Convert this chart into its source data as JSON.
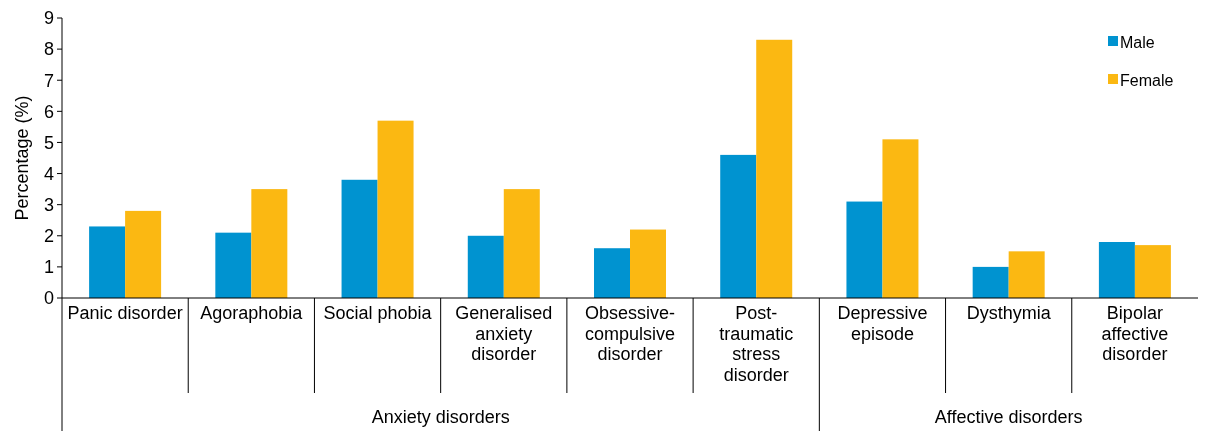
{
  "chart_data": {
    "type": "bar",
    "ylabel": "Percentage (%)",
    "categories": [
      "Panic disorder",
      "Agoraphobia",
      "Social phobia",
      "Generalised anxiety disorder",
      "Obsessive-compulsive disorder",
      "Post-traumatic stress disorder",
      "Depressive episode",
      "Dysthymia",
      "Bipolar affective disorder"
    ],
    "series": [
      {
        "name": "Male",
        "color": "#0093d0",
        "values": [
          2.3,
          2.1,
          3.8,
          2.0,
          1.6,
          4.6,
          3.1,
          1.0,
          1.8
        ]
      },
      {
        "name": "Female",
        "color": "#fbb812",
        "values": [
          2.8,
          3.5,
          5.7,
          3.5,
          2.2,
          8.3,
          5.1,
          1.5,
          1.7
        ]
      }
    ],
    "ylim": [
      0,
      9
    ],
    "yticks": [
      0,
      1,
      2,
      3,
      4,
      5,
      6,
      7,
      8,
      9
    ],
    "grid": false,
    "legend": "top right",
    "annotations": [
      "Anxiety disorders",
      "Affective disorders"
    ]
  }
}
